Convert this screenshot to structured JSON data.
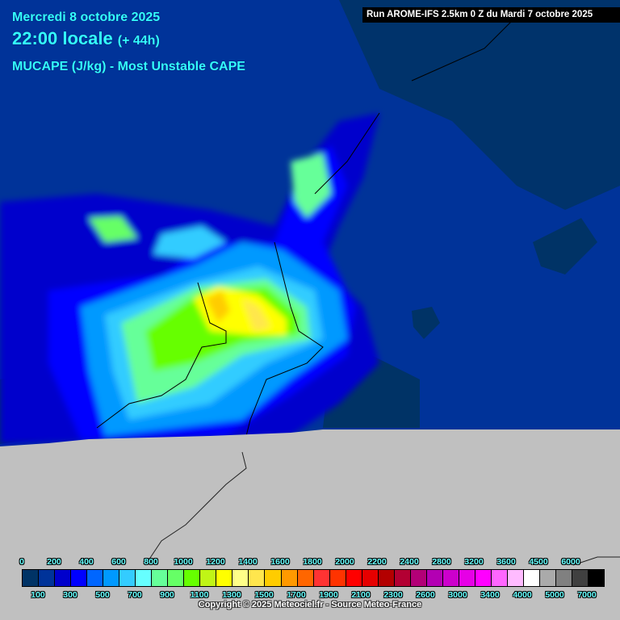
{
  "header": {
    "date": "Mercredi 8 octobre 2025",
    "time": "22:00 locale",
    "lead": "(+ 44h)",
    "parameter": "MUCAPE (J/kg) - Most Unstable CAPE",
    "run": "Run AROME-IFS 2.5km 0 Z du Mardi 7 octobre 2025"
  },
  "map": {
    "sea_color": "#003399",
    "land_low_color": "#003366",
    "no_data_color": "#c0c0c0",
    "border_color": "#000000"
  },
  "legend": {
    "unit": "J/kg",
    "top_labels": [
      "0",
      "200",
      "400",
      "600",
      "800",
      "1000",
      "1200",
      "1400",
      "1600",
      "1800",
      "2000",
      "2200",
      "2400",
      "2800",
      "3200",
      "3600",
      "4500",
      "6000"
    ],
    "bottom_labels": [
      "100",
      "300",
      "500",
      "700",
      "900",
      "1100",
      "1300",
      "1500",
      "1700",
      "1900",
      "2100",
      "2300",
      "2600",
      "3000",
      "3400",
      "4000",
      "5000",
      "7000"
    ],
    "colors": [
      "#003366",
      "#003399",
      "#0000cc",
      "#0000ff",
      "#0066ff",
      "#0099ff",
      "#33ccff",
      "#66ffff",
      "#66ff99",
      "#66ff66",
      "#66ff00",
      "#c0f516",
      "#ffff00",
      "#ffff88",
      "#ffe64d",
      "#ffcc00",
      "#ff9900",
      "#ff6600",
      "#ff3333",
      "#ff3300",
      "#ff0000",
      "#e60000",
      "#b30000",
      "#b30033",
      "#b30077",
      "#b300b3",
      "#cc00cc",
      "#e600e6",
      "#ff00ff",
      "#ff66ff",
      "#ffbbff",
      "#ffffff",
      "#aaaaaa",
      "#808080",
      "#404040",
      "#000000"
    ]
  },
  "footer": {
    "copyright": "Copyright © 2025 Meteociel.fr - Source Meteo-France"
  }
}
